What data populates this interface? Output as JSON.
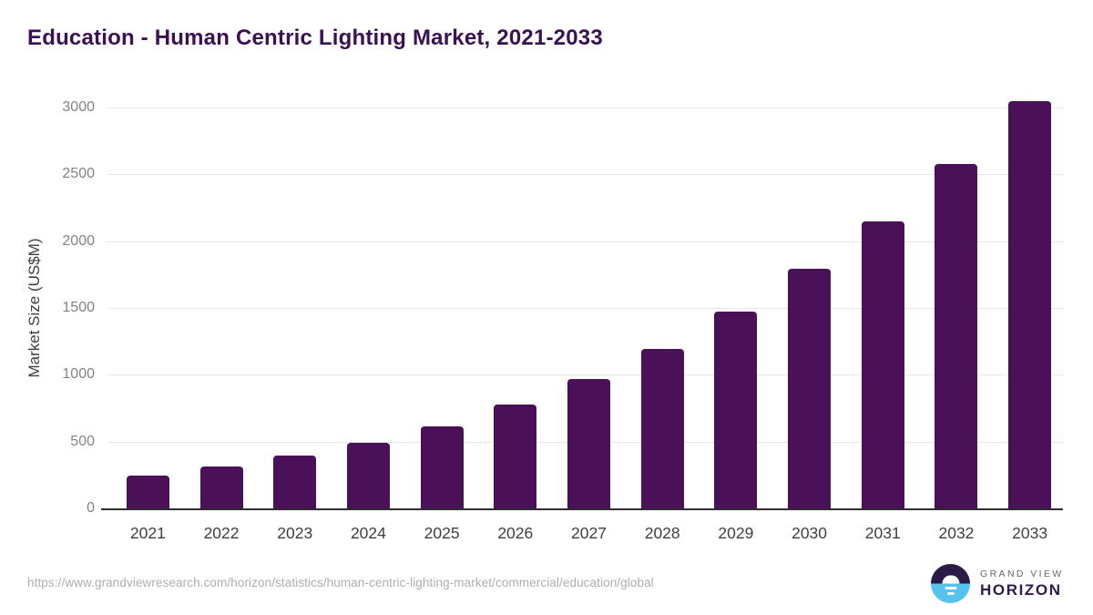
{
  "title": "Education - Human Centric Lighting Market, 2021-2033",
  "chart_data": {
    "type": "bar",
    "title": "Education - Human Centric Lighting Market, 2021-2033",
    "categories": [
      "2021",
      "2022",
      "2023",
      "2024",
      "2025",
      "2026",
      "2027",
      "2028",
      "2029",
      "2030",
      "2031",
      "2032",
      "2033"
    ],
    "values": [
      243,
      313,
      393,
      494,
      617,
      778,
      968,
      1196,
      1470,
      1792,
      2150,
      2574,
      3046
    ],
    "xlabel": "",
    "ylabel": "Market Size (US$M)",
    "ylim": [
      0,
      3000
    ],
    "yticks": [
      0,
      500,
      1000,
      1500,
      2000,
      2500,
      3000
    ],
    "grid": "horizontal",
    "legend": "none",
    "bar_color": "#4a1158"
  },
  "colors": {
    "title": "#3a1153",
    "bar": "#4a1158",
    "gridline": "#e7e7e7",
    "axis_line": "#2e2e2e",
    "logo_dark": "#2b1a46",
    "logo_blue": "#55c3ef"
  },
  "footer": {
    "source_url": "https://www.grandviewresearch.com/horizon/statistics/human-centric-lighting-market/commercial/education/global",
    "logo": {
      "line1": "GRAND VIEW",
      "line2": "HORIZON"
    }
  }
}
